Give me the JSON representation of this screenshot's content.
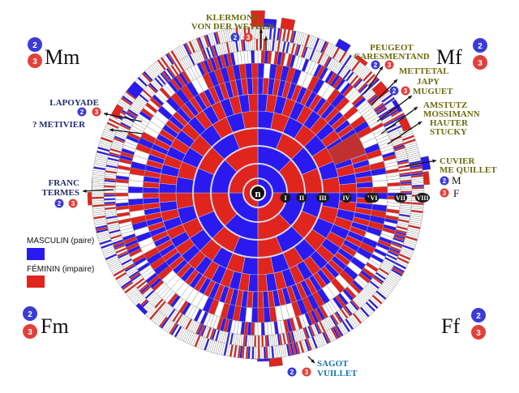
{
  "quadrants": {
    "tl": "Mm",
    "tr": "Mf",
    "bl": "Fm",
    "br": "Ff"
  },
  "center_label": "n",
  "ring_labels": [
    "I",
    "II",
    "III",
    "IV",
    "V",
    "VI",
    "VII",
    "VIII"
  ],
  "legend": {
    "male_label": "MASCULIN (paire)",
    "female_label": "FÉMININ (impaire)",
    "male_color": "#2a1af0",
    "female_color": "#e0241e"
  },
  "badges": {
    "two": "2",
    "three": "3"
  },
  "names": {
    "klermond": "KLERMOND",
    "vonderweyden": "VON DER WEYDEN",
    "peugeot": "PEUGEOT",
    "caresmentand": "CARESMENTAND",
    "mettetal": "METTETAL",
    "japy": "JAPY",
    "muguet": "MUGUET",
    "amstutz": "AMSTUTZ",
    "mossimann": "MOSSIMANN",
    "hauter": "HAUTER",
    "stucky": "STUCKY",
    "cuvier": "CUVIER",
    "mequillet": "ME QUILLET",
    "lapoyade": "LAPOYADE",
    "metivier": "? METIVIER",
    "franc": "FRANC",
    "termes": "TERMES",
    "sagot": "SAGOT",
    "vuillet": "VUILLET"
  },
  "side_letters": {
    "m": "M",
    "f": "F"
  },
  "colors": {
    "male": "#2a1af0",
    "female": "#e0241e",
    "dark_red": "#c03030",
    "olive": "#6b6b10",
    "navy": "#1f2d6b",
    "teal": "#1675b0"
  }
}
